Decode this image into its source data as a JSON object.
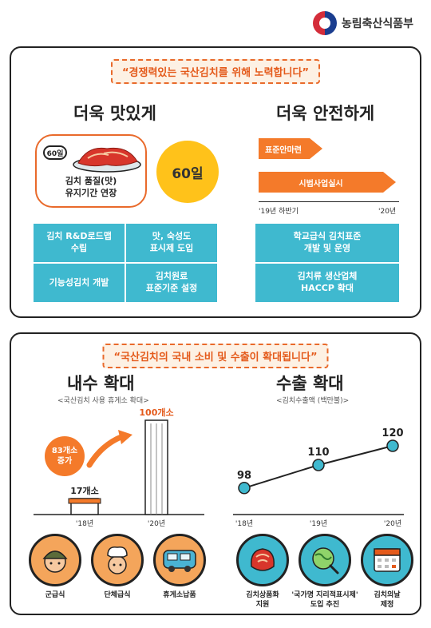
{
  "header": {
    "org_name": "농림축산식품부"
  },
  "top": {
    "slogan": "“경쟁력있는 국산김치를 위해 노력합니다”",
    "left_title": "더욱 맛있게",
    "right_title": "더욱 안전하게",
    "badge_60": "60일",
    "kimchi_caption_1": "김치 품질(맛)",
    "kimchi_caption_2": "유지기간 연장",
    "circle_label": "60일",
    "arrow_1": "표준안마련",
    "arrow_2": "시범사업실시",
    "timeline_start": "'19년 하반기",
    "timeline_end": "'20년",
    "left_tiles": [
      [
        "김치 R&D로드맵",
        "수립"
      ],
      [
        "맛, 숙성도",
        "표시제 도입"
      ],
      [
        "기능성김치 개발"
      ],
      [
        "김치원료",
        "표준기준 설정"
      ]
    ],
    "right_tiles": [
      [
        "학교급식 김치표준",
        "개발 및 운영"
      ],
      [
        "김치류 생산업체",
        "HACCP 확대"
      ]
    ]
  },
  "bottom": {
    "slogan": "“국산김치의 국내 소비 및 수출이 확대됩니다”",
    "left_title": "내수 확대",
    "left_sub": "<국산김치 사용 휴게소 확대>",
    "right_title": "수출 확대",
    "right_sub": "<김치수출액 (백만불)>",
    "stores_2018": "17개소",
    "stores_2020": "100개소",
    "increase_1": "83개소",
    "increase_2": "증가",
    "left_ticks": [
      "'18년",
      "'20년"
    ],
    "icons_left": [
      {
        "label": "군급식",
        "icon": "soldier-icon"
      },
      {
        "label": "단체급식",
        "icon": "chef-icon"
      },
      {
        "label": "휴게소납품",
        "icon": "bus-icon"
      }
    ],
    "icons_right": [
      {
        "label": [
          "김치상품화",
          "지원"
        ],
        "icon": "kimchi-icon"
      },
      {
        "label": [
          "'국가명 지리적표시제'",
          "도입 추진"
        ],
        "icon": "globe-search-icon"
      },
      {
        "label": [
          "김치의날",
          "제정"
        ],
        "icon": "calendar-icon"
      }
    ]
  },
  "colors": {
    "orange": "#f47a2a",
    "teal": "#3fb9cf",
    "yellow": "#ffc21a"
  },
  "chart_data": [
    {
      "type": "bar",
      "title": "내수 확대",
      "subtitle": "<국산김치 사용 휴게소 확대>",
      "categories": [
        "'18년",
        "'20년"
      ],
      "values": [
        17,
        100
      ],
      "value_labels": [
        "17개소",
        "100개소"
      ]
    },
    {
      "type": "line",
      "title": "수출 확대",
      "subtitle": "<김치수출액 (백만불)>",
      "categories": [
        "'18년",
        "'19년",
        "'20년"
      ],
      "values": [
        98,
        110,
        120
      ]
    }
  ]
}
